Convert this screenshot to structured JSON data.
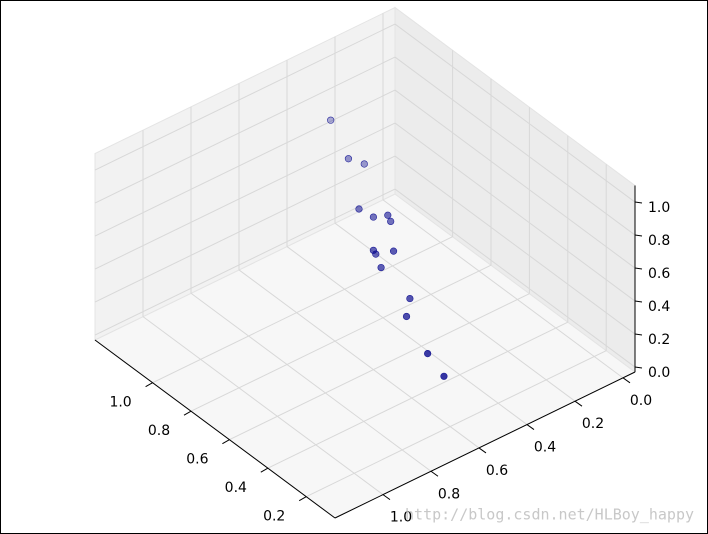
{
  "chart_data": {
    "type": "scatter3d",
    "x": [
      1.06,
      0.93,
      0.91,
      0.8,
      0.75,
      0.7,
      0.71,
      0.7,
      0.7,
      0.62,
      0.66,
      0.56,
      0.54,
      0.43,
      0.37
    ],
    "y": [
      0.41,
      0.44,
      0.39,
      0.5,
      0.48,
      0.46,
      0.44,
      0.52,
      0.51,
      0.5,
      0.52,
      0.48,
      0.51,
      0.51,
      0.49
    ],
    "z": [
      0.95,
      0.85,
      0.8,
      0.7,
      0.68,
      0.72,
      0.66,
      0.55,
      0.52,
      0.6,
      0.48,
      0.35,
      0.28,
      0.15,
      0.05
    ],
    "color": "#00008b",
    "xlim": [
      0.05,
      1.3
    ],
    "ylim": [
      -0.05,
      1.2
    ],
    "zlim": [
      -0.03,
      1.1
    ],
    "xticks": [
      0.2,
      0.4,
      0.6,
      0.8,
      {
        "value": 1,
        "label": "1.0"
      }
    ],
    "yticks": [
      {
        "value": 0,
        "label": "0.0"
      },
      0.2,
      0.4,
      0.6,
      0.8,
      {
        "value": 1,
        "label": "1.0"
      }
    ],
    "zticks": [
      {
        "value": 0,
        "label": "0.0"
      },
      0.2,
      0.4,
      0.6,
      0.8,
      {
        "value": 1,
        "label": "1.0"
      }
    ],
    "grid": true
  },
  "watermark": "http://blog.csdn.net/HLBoy_happy"
}
